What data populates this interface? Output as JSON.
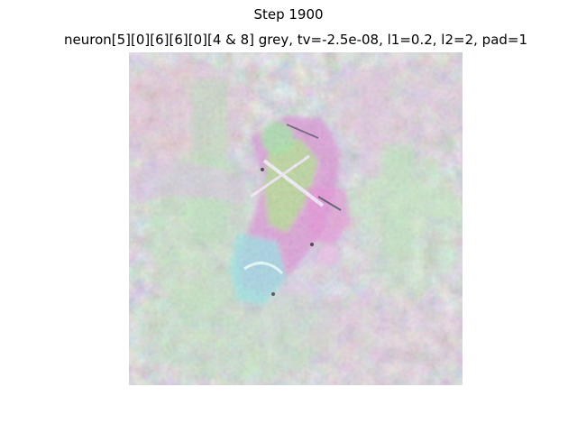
{
  "figure": {
    "suptitle": "Step 1900",
    "axes_title": "neuron[5][0][6][6][0][4 & 8] grey, tv=-2.5e-08, l1=0.2, l2=2, pad=1"
  },
  "colors": {
    "background": "#ffffff",
    "text": "#000000",
    "image_base": "#cfcfc7",
    "pastel_green": "#b6e6b0",
    "pastel_pink": "#e9b9cf",
    "pastel_violet": "#c9bde6",
    "magenta": "#d98ad0",
    "cyan": "#8fe3e6",
    "lime": "#a6f07a"
  }
}
